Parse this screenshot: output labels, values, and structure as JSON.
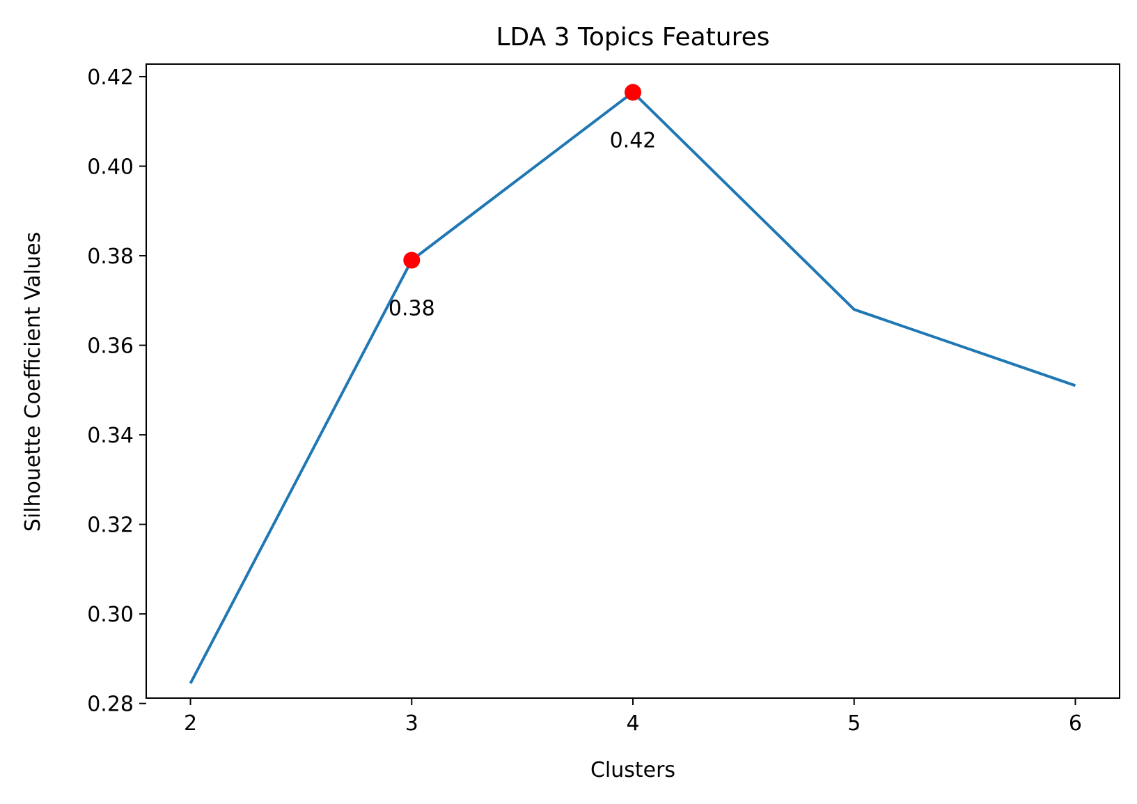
{
  "chart_data": {
    "type": "line",
    "title": "LDA 3 Topics Features",
    "xlabel": "Clusters",
    "ylabel": "Silhouette Coefficient Values",
    "x": [
      2,
      3,
      4,
      5,
      6
    ],
    "series": [
      {
        "values": [
          0.2845,
          0.379,
          0.4165,
          0.368,
          0.351
        ],
        "color": "#1f77b4"
      }
    ],
    "highlight_points": [
      {
        "x": 3,
        "y": 0.379,
        "label": "0.38",
        "color": "#ff0000"
      },
      {
        "x": 4,
        "y": 0.4165,
        "label": "0.42",
        "color": "#ff0000"
      }
    ],
    "xlim": [
      1.8,
      6.2
    ],
    "ylim": [
      0.2812,
      0.4228
    ],
    "xticks": [
      2,
      3,
      4,
      5,
      6
    ],
    "xtick_labels": [
      "2",
      "3",
      "4",
      "5",
      "6"
    ],
    "yticks": [
      0.28,
      0.3,
      0.32,
      0.34,
      0.36,
      0.38,
      0.4,
      0.42
    ],
    "ytick_labels": [
      "0.28",
      "0.30",
      "0.32",
      "0.34",
      "0.36",
      "0.38",
      "0.40",
      "0.42"
    ],
    "grid": false,
    "legend": "none"
  }
}
